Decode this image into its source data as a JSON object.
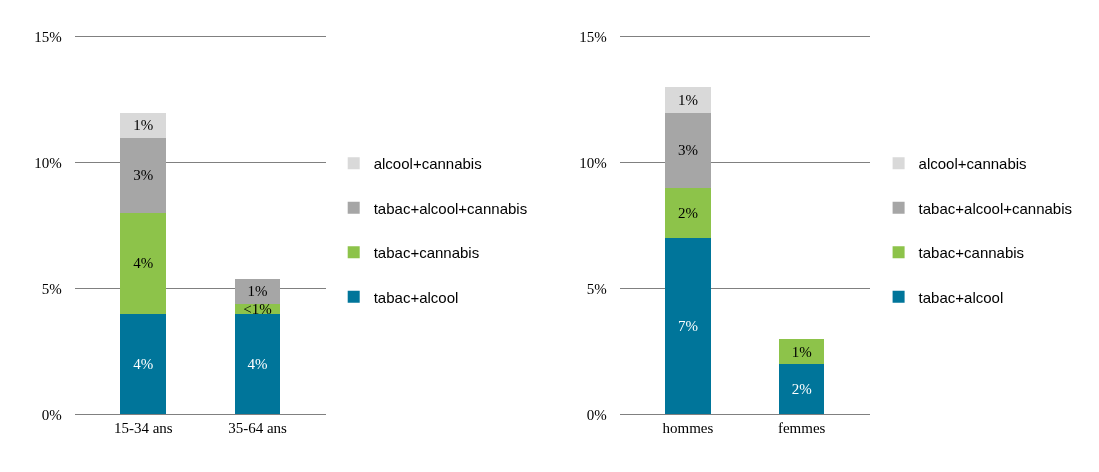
{
  "chart_data": [
    {
      "type": "bar",
      "stacked": true,
      "categories": [
        "15-34 ans",
        "35-64 ans"
      ],
      "series": [
        {
          "name": "tabac+alcool",
          "color": "#00759a",
          "values": [
            4,
            4
          ],
          "value_labels": [
            "4%",
            "4%"
          ]
        },
        {
          "name": "tabac+cannabis",
          "color": "#8dc34a",
          "values": [
            4,
            0.4
          ],
          "value_labels": [
            "4%",
            "<1%"
          ]
        },
        {
          "name": "tabac+alcool+cannabis",
          "color": "#a6a6a6",
          "values": [
            3,
            1
          ],
          "value_labels": [
            "3%",
            "1%"
          ]
        },
        {
          "name": "alcool+cannabis",
          "color": "#d9d9d9",
          "values": [
            1,
            null
          ],
          "value_labels": [
            "1%",
            null
          ]
        }
      ],
      "ylim": [
        0,
        15
      ],
      "yticks": [
        {
          "value": 0,
          "label": "0%"
        },
        {
          "value": 5,
          "label": "5%"
        },
        {
          "value": 10,
          "label": "10%"
        },
        {
          "value": 15,
          "label": "15%"
        }
      ],
      "grid": "y",
      "legend": "right"
    },
    {
      "type": "bar",
      "stacked": true,
      "categories": [
        "hommes",
        "femmes"
      ],
      "series": [
        {
          "name": "tabac+alcool",
          "color": "#00759a",
          "values": [
            7,
            2
          ],
          "value_labels": [
            "7%",
            "2%"
          ]
        },
        {
          "name": "tabac+cannabis",
          "color": "#8dc34a",
          "values": [
            2,
            1
          ],
          "value_labels": [
            "2%",
            "1%"
          ]
        },
        {
          "name": "tabac+alcool+cannabis",
          "color": "#a6a6a6",
          "values": [
            3,
            null
          ],
          "value_labels": [
            "3%",
            null
          ]
        },
        {
          "name": "alcool+cannabis",
          "color": "#d9d9d9",
          "values": [
            1,
            null
          ],
          "value_labels": [
            "1%",
            null
          ]
        }
      ],
      "ylim": [
        0,
        15
      ],
      "yticks": [
        {
          "value": 0,
          "label": "0%"
        },
        {
          "value": 5,
          "label": "5%"
        },
        {
          "value": 10,
          "label": "10%"
        },
        {
          "value": 15,
          "label": "15%"
        }
      ],
      "grid": "y",
      "legend": "right"
    }
  ]
}
